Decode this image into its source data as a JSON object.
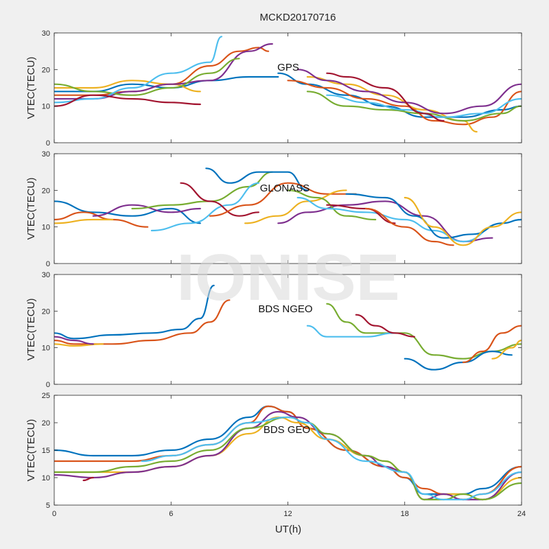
{
  "title": "MCKD20170716",
  "watermark": "IONISE",
  "xlabel": "UT(h)",
  "colors": [
    "#0072BD",
    "#D95319",
    "#EDB120",
    "#7E2F8E",
    "#77AC30",
    "#4DBEEE",
    "#A2142F"
  ],
  "chart_data": [
    {
      "type": "line",
      "annotation": "GPS",
      "ylabel": "VTEC(TECU)",
      "xlim": [
        0,
        24
      ],
      "ylim": [
        0,
        30
      ],
      "xticks": [
        0,
        6,
        12,
        18,
        24
      ],
      "yticks": [
        0,
        10,
        20,
        30
      ],
      "series": [
        {
          "x": [
            0,
            2,
            4,
            6,
            8,
            10,
            11.5
          ],
          "y": [
            14,
            14,
            16,
            15,
            17,
            18,
            18
          ]
        },
        {
          "x": [
            0,
            2,
            4,
            6,
            8,
            9.5,
            10.5,
            11
          ],
          "y": [
            13,
            13,
            14,
            16,
            21,
            25,
            26,
            25
          ]
        },
        {
          "x": [
            0,
            2,
            4,
            6,
            7.5
          ],
          "y": [
            15,
            15,
            17,
            16,
            14
          ]
        },
        {
          "x": [
            0,
            2,
            4,
            6,
            8,
            10,
            11.2
          ],
          "y": [
            12,
            12,
            14,
            16,
            17,
            25,
            27
          ]
        },
        {
          "x": [
            0,
            2,
            4,
            6,
            8,
            9.5
          ],
          "y": [
            16,
            14,
            13,
            15,
            19,
            23
          ]
        },
        {
          "x": [
            0,
            2,
            4,
            6,
            8,
            8.6
          ],
          "y": [
            11,
            12,
            15,
            19,
            22,
            29
          ]
        },
        {
          "x": [
            0,
            2,
            4,
            6,
            7.5
          ],
          "y": [
            10,
            13,
            12,
            11,
            10.5
          ]
        },
        {
          "x": [
            11.5,
            13,
            15,
            17,
            19,
            21,
            23,
            24
          ],
          "y": [
            19,
            16,
            13,
            10,
            7,
            7,
            9,
            10
          ]
        },
        {
          "x": [
            12,
            14,
            16,
            18,
            19.5,
            21,
            22.5,
            24
          ],
          "y": [
            17,
            15,
            12,
            10,
            6,
            5,
            7,
            14
          ]
        },
        {
          "x": [
            13,
            15,
            17,
            19,
            21,
            21.7
          ],
          "y": [
            18,
            16,
            13,
            9,
            6,
            3
          ]
        },
        {
          "x": [
            12.5,
            14,
            16,
            18,
            20,
            22,
            24
          ],
          "y": [
            20,
            17,
            14,
            11,
            8,
            10,
            16
          ]
        },
        {
          "x": [
            13,
            15,
            17,
            19,
            21,
            23,
            24
          ],
          "y": [
            14,
            10,
            9,
            8,
            6,
            8,
            10
          ]
        },
        {
          "x": [
            14,
            16,
            18,
            20,
            22,
            24
          ],
          "y": [
            13,
            11,
            9,
            7,
            8,
            12
          ]
        },
        {
          "x": [
            14,
            15,
            17,
            19,
            20
          ],
          "y": [
            19,
            18,
            15,
            8,
            6
          ]
        }
      ]
    },
    {
      "type": "line",
      "annotation": "GLONASS",
      "ylabel": "VTEC(TECU)",
      "xlim": [
        0,
        24
      ],
      "ylim": [
        0,
        30
      ],
      "xticks": [
        0,
        6,
        12,
        18,
        24
      ],
      "yticks": [
        0,
        10,
        20,
        30
      ],
      "series": [
        {
          "x": [
            0,
            2,
            4,
            6,
            7.5
          ],
          "y": [
            17,
            14,
            13,
            15,
            11
          ]
        },
        {
          "x": [
            0,
            1.5,
            3,
            4.8
          ],
          "y": [
            12,
            14,
            12,
            10
          ]
        },
        {
          "x": [
            0,
            2,
            3
          ],
          "y": [
            11,
            12,
            12
          ]
        },
        {
          "x": [
            2,
            4,
            6,
            7.5
          ],
          "y": [
            13,
            16,
            14,
            15
          ]
        },
        {
          "x": [
            4,
            6,
            8,
            10,
            11.2
          ],
          "y": [
            15,
            16,
            17,
            21,
            25
          ]
        },
        {
          "x": [
            5,
            7,
            9,
            10.5
          ],
          "y": [
            9,
            11,
            16,
            22
          ]
        },
        {
          "x": [
            6.5,
            8,
            9.5,
            10.5
          ],
          "y": [
            22,
            17,
            13,
            14
          ]
        },
        {
          "x": [
            7.8,
            9,
            10.5,
            12,
            13
          ],
          "y": [
            26,
            22,
            25,
            25,
            20
          ]
        },
        {
          "x": [
            8,
            10,
            12,
            14,
            15.5
          ],
          "y": [
            13,
            16,
            22,
            19,
            19
          ]
        },
        {
          "x": [
            9.8,
            11.5,
            13,
            15
          ],
          "y": [
            11,
            13,
            17,
            20
          ]
        },
        {
          "x": [
            11.5,
            13,
            15,
            17,
            19,
            21,
            22.5
          ],
          "y": [
            11,
            14,
            16,
            17,
            13,
            6,
            7
          ]
        },
        {
          "x": [
            12,
            13.5,
            15,
            16.5
          ],
          "y": [
            20,
            18,
            13,
            12
          ]
        },
        {
          "x": [
            12.5,
            14,
            16,
            18,
            19.5,
            21,
            23,
            24
          ],
          "y": [
            18,
            15,
            14,
            12,
            9,
            6,
            11,
            12
          ]
        },
        {
          "x": [
            14,
            16,
            17.5
          ],
          "y": [
            16,
            15,
            11
          ]
        },
        {
          "x": [
            15,
            17,
            18.5,
            20,
            21.5,
            23,
            24
          ],
          "y": [
            19,
            18,
            13,
            7,
            8,
            11,
            12
          ]
        },
        {
          "x": [
            16,
            18,
            19.5,
            20.5
          ],
          "y": [
            15,
            10,
            6,
            5
          ]
        },
        {
          "x": [
            18,
            19.5,
            21,
            22.5,
            24
          ],
          "y": [
            18,
            10,
            5,
            10,
            14
          ]
        }
      ]
    },
    {
      "type": "line",
      "annotation": "BDS NGEO",
      "ylabel": "VTEC(TECU)",
      "xlim": [
        0,
        24
      ],
      "ylim": [
        0,
        30
      ],
      "xticks": [
        0,
        6,
        12,
        18,
        24
      ],
      "yticks": [
        0,
        10,
        20,
        30
      ],
      "series": [
        {
          "x": [
            0,
            1,
            3,
            5,
            6.5,
            7.5,
            8.2
          ],
          "y": [
            14,
            12.5,
            13.5,
            14,
            15,
            18,
            27
          ]
        },
        {
          "x": [
            0,
            1,
            3,
            5,
            7,
            8,
            9
          ],
          "y": [
            12,
            11,
            11,
            12,
            14,
            17,
            23
          ]
        },
        {
          "x": [
            0,
            1,
            2.5
          ],
          "y": [
            11,
            10.5,
            11
          ]
        },
        {
          "x": [
            0,
            1,
            2
          ],
          "y": [
            13,
            12,
            11
          ]
        },
        {
          "x": [
            14,
            15,
            16,
            17,
            18,
            19.5,
            21,
            22.5,
            24
          ],
          "y": [
            22,
            17,
            14,
            14,
            14,
            8,
            7,
            9,
            11
          ]
        },
        {
          "x": [
            13,
            14,
            16,
            17.5
          ],
          "y": [
            16,
            13,
            13,
            14
          ]
        },
        {
          "x": [
            15.5,
            16.5,
            17.5,
            18.5
          ],
          "y": [
            19,
            16,
            14,
            13
          ]
        },
        {
          "x": [
            18,
            19.5,
            21,
            22.5,
            23.5
          ],
          "y": [
            7,
            4,
            6,
            9,
            8
          ]
        },
        {
          "x": [
            21,
            22,
            23,
            24
          ],
          "y": [
            6,
            9,
            14,
            16
          ]
        },
        {
          "x": [
            22.5,
            23.5,
            24
          ],
          "y": [
            7,
            10,
            12
          ]
        }
      ]
    },
    {
      "type": "line",
      "annotation": "BDS GEO",
      "ylabel": "VTEC(TECU)",
      "xlim": [
        0,
        24
      ],
      "ylim": [
        5,
        25
      ],
      "xticks": [
        0,
        6,
        12,
        18,
        24
      ],
      "yticks": [
        5,
        10,
        15,
        20,
        25
      ],
      "series": [
        {
          "x": [
            0,
            2,
            4,
            6,
            8,
            10,
            11,
            12,
            13,
            15,
            17,
            18,
            19,
            20,
            21,
            22,
            24
          ],
          "y": [
            15,
            14,
            14,
            15,
            17,
            21,
            23,
            22,
            19,
            15,
            12,
            10,
            7,
            7,
            7,
            8,
            12
          ]
        },
        {
          "x": [
            0,
            2,
            4,
            6,
            8,
            10,
            11,
            12,
            13,
            15,
            17,
            18,
            19,
            20,
            21,
            22,
            24
          ],
          "y": [
            13,
            13,
            13,
            14,
            16,
            20,
            23,
            22,
            19,
            15,
            12,
            10,
            8,
            7,
            6,
            7,
            12
          ]
        },
        {
          "x": [
            0,
            2,
            4,
            6,
            8,
            10,
            11.5,
            12.5,
            14,
            16,
            17,
            18,
            19,
            20,
            21,
            22,
            24
          ],
          "y": [
            11,
            11,
            11,
            12,
            14,
            18,
            21,
            20,
            17,
            14,
            13,
            11,
            6,
            7,
            7,
            6,
            10
          ]
        },
        {
          "x": [
            0,
            2,
            4,
            6,
            8,
            10,
            11.5,
            12.5,
            14,
            16,
            17,
            18,
            19,
            20,
            21,
            22,
            24
          ],
          "y": [
            10.5,
            10,
            11,
            12,
            14,
            19,
            22,
            21,
            18,
            14,
            12,
            11,
            6,
            7,
            6,
            6,
            11
          ]
        },
        {
          "x": [
            0,
            2,
            4,
            6,
            8,
            10,
            12,
            13,
            14,
            16,
            17,
            18,
            19,
            20,
            21,
            22,
            24
          ],
          "y": [
            11,
            11,
            12,
            13,
            15,
            19,
            21,
            20,
            18,
            14,
            13,
            11,
            6,
            6,
            7,
            6,
            9
          ]
        },
        {
          "x": [
            4.5,
            6,
            8,
            10,
            12,
            13,
            14,
            16,
            18,
            19,
            20,
            21,
            22,
            24
          ],
          "y": [
            13,
            14,
            16,
            20,
            21,
            20,
            17,
            13,
            11,
            7,
            6,
            6,
            7,
            11
          ]
        },
        {
          "x": [
            1.5,
            2
          ],
          "y": [
            9.5,
            10
          ]
        }
      ]
    }
  ]
}
